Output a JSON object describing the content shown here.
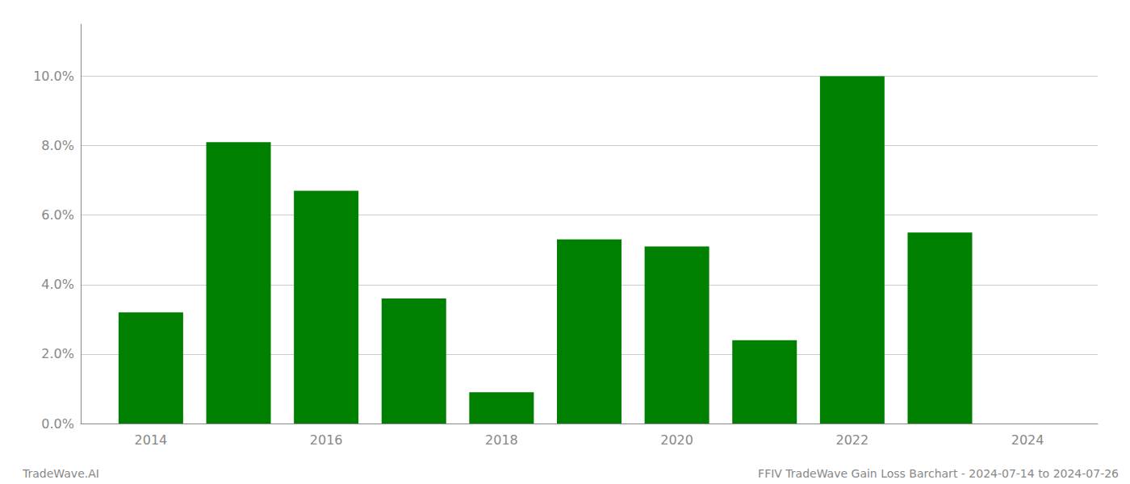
{
  "chart_data": {
    "type": "bar",
    "x": [
      2014,
      2015,
      2016,
      2017,
      2018,
      2019,
      2020,
      2021,
      2022,
      2023
    ],
    "values": [
      0.032,
      0.081,
      0.067,
      0.036,
      0.009,
      0.053,
      0.051,
      0.024,
      0.1,
      0.055
    ],
    "color": "#008000",
    "xlim": [
      2013.2,
      2024.8
    ],
    "xticks": [
      2014,
      2016,
      2018,
      2020,
      2022,
      2024
    ],
    "ylim": [
      0,
      0.115
    ],
    "yticks": [
      {
        "value": 0.0,
        "label": "0.0%"
      },
      {
        "value": 0.02,
        "label": "2.0%"
      },
      {
        "value": 0.04,
        "label": "4.0%"
      },
      {
        "value": 0.06,
        "label": "6.0%"
      },
      {
        "value": 0.08,
        "label": "8.0%"
      },
      {
        "value": 0.1,
        "label": "10.0%"
      }
    ],
    "grid": true,
    "annotations": [
      "TradeWave.AI",
      "FFIV TradeWave Gain Loss Barchart - 2024-07-14 to 2024-07-26"
    ]
  }
}
